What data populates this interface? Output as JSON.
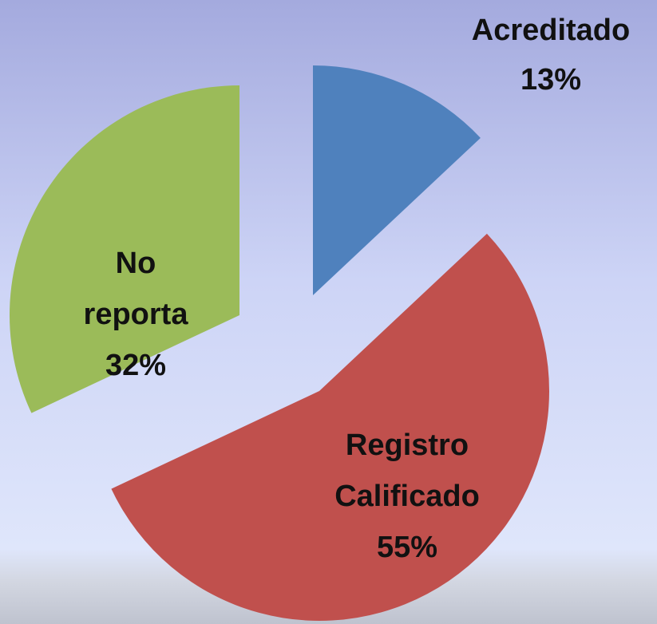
{
  "chart_data": {
    "type": "pie",
    "categories": [
      "Acreditado",
      "Registro Calificado",
      "No reporta"
    ],
    "values": [
      13,
      55,
      32
    ],
    "value_labels": [
      "13%",
      "55%",
      "32%"
    ],
    "colors": [
      "#4f81bd",
      "#c0504d",
      "#9bbb59"
    ]
  }
}
